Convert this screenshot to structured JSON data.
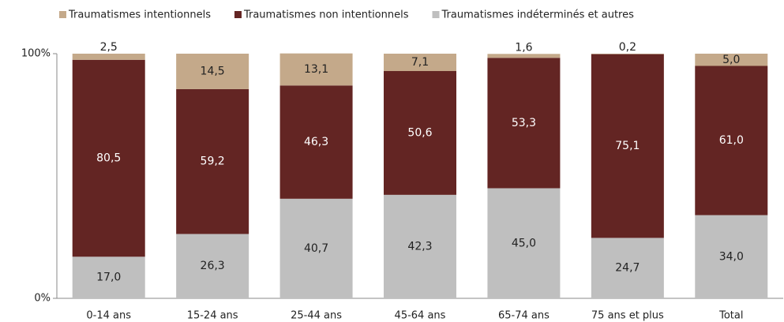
{
  "chart_data": {
    "type": "stacked-bar",
    "categories": [
      "0-14 ans",
      "15-24 ans",
      "25-44 ans",
      "45-64 ans",
      "65-74 ans",
      "75 ans et plus",
      "Total"
    ],
    "series": [
      {
        "name": "Traumatismes intentionnels",
        "color": "#c4a98a",
        "values": [
          2.5,
          14.5,
          13.1,
          7.1,
          1.6,
          0.2,
          5.0
        ],
        "value_labels": [
          "2,5",
          "14,5",
          "13,1",
          "7,1",
          "1,6",
          "0,2",
          "5,0"
        ]
      },
      {
        "name": "Traumatismes non intentionnels",
        "color": "#632523",
        "values": [
          80.5,
          59.2,
          46.3,
          50.6,
          53.3,
          75.1,
          61.0
        ],
        "value_labels": [
          "80,5",
          "59,2",
          "46,3",
          "50,6",
          "53,3",
          "75,1",
          "61,0"
        ]
      },
      {
        "name": "Traumatismes indéterminés et autres",
        "color": "#bfbfbf",
        "values": [
          17.0,
          26.3,
          40.7,
          42.3,
          45.0,
          24.7,
          34.0
        ],
        "value_labels": [
          "17,0",
          "26,3",
          "40,7",
          "42,3",
          "45,0",
          "24,7",
          "34,0"
        ]
      }
    ],
    "ylim": [
      0,
      100
    ],
    "yticks": [
      {
        "value": 0,
        "label": "0%"
      },
      {
        "value": 100,
        "label": "100%"
      }
    ]
  }
}
